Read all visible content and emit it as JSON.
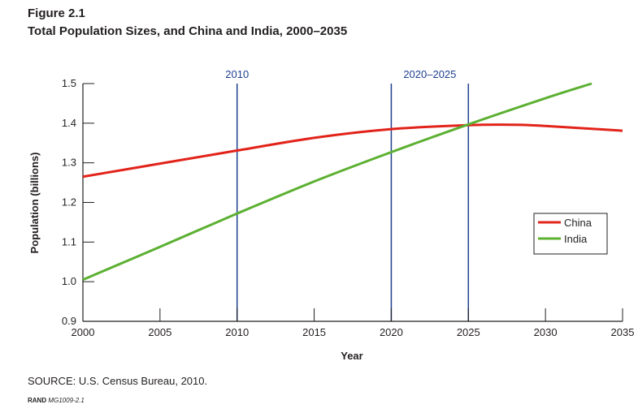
{
  "figure": {
    "label": "Figure 2.1",
    "title": "Total Population Sizes, and China and India, 2000–2035",
    "source": "SOURCE: U.S. Census Bureau, 2010.",
    "code_prefix": "RAND",
    "code": "MG1009-2.1"
  },
  "colors": {
    "china": "#e2231a",
    "india": "#5cb032",
    "reference_line": "#1f3f8f",
    "axis": "#231f20"
  },
  "chart_data": {
    "type": "line",
    "title": "Total Population Sizes, and China and India, 2000–2035",
    "xlabel": "Year",
    "ylabel": "Population (billions)",
    "xlim": [
      2000,
      2035
    ],
    "ylim": [
      0.9,
      1.5
    ],
    "x_ticks": [
      2000,
      2005,
      2010,
      2015,
      2020,
      2025,
      2030,
      2035
    ],
    "y_ticks": [
      "0.9",
      "1.0",
      "1.1",
      "1.2",
      "1.3",
      "1.4",
      "1.5"
    ],
    "grid": false,
    "legend_position": "right",
    "series": [
      {
        "name": "China",
        "color": "#e2231a",
        "x": [
          2000,
          2005,
          2010,
          2015,
          2020,
          2025,
          2028,
          2030,
          2035
        ],
        "y": [
          1.265,
          1.298,
          1.331,
          1.363,
          1.385,
          1.395,
          1.396,
          1.393,
          1.381
        ]
      },
      {
        "name": "India",
        "color": "#5cb032",
        "x": [
          2000,
          2005,
          2010,
          2015,
          2020,
          2025,
          2030,
          2033
        ],
        "y": [
          1.005,
          1.088,
          1.172,
          1.253,
          1.327,
          1.397,
          1.463,
          1.5
        ]
      }
    ],
    "reference_lines": [
      {
        "x": 2010
      },
      {
        "x": 2020
      },
      {
        "x": 2025
      }
    ],
    "annotations": [
      {
        "text": "2010",
        "x": 2010
      },
      {
        "text": "2020–2025",
        "x_from": 2020,
        "x_to": 2025
      }
    ]
  }
}
